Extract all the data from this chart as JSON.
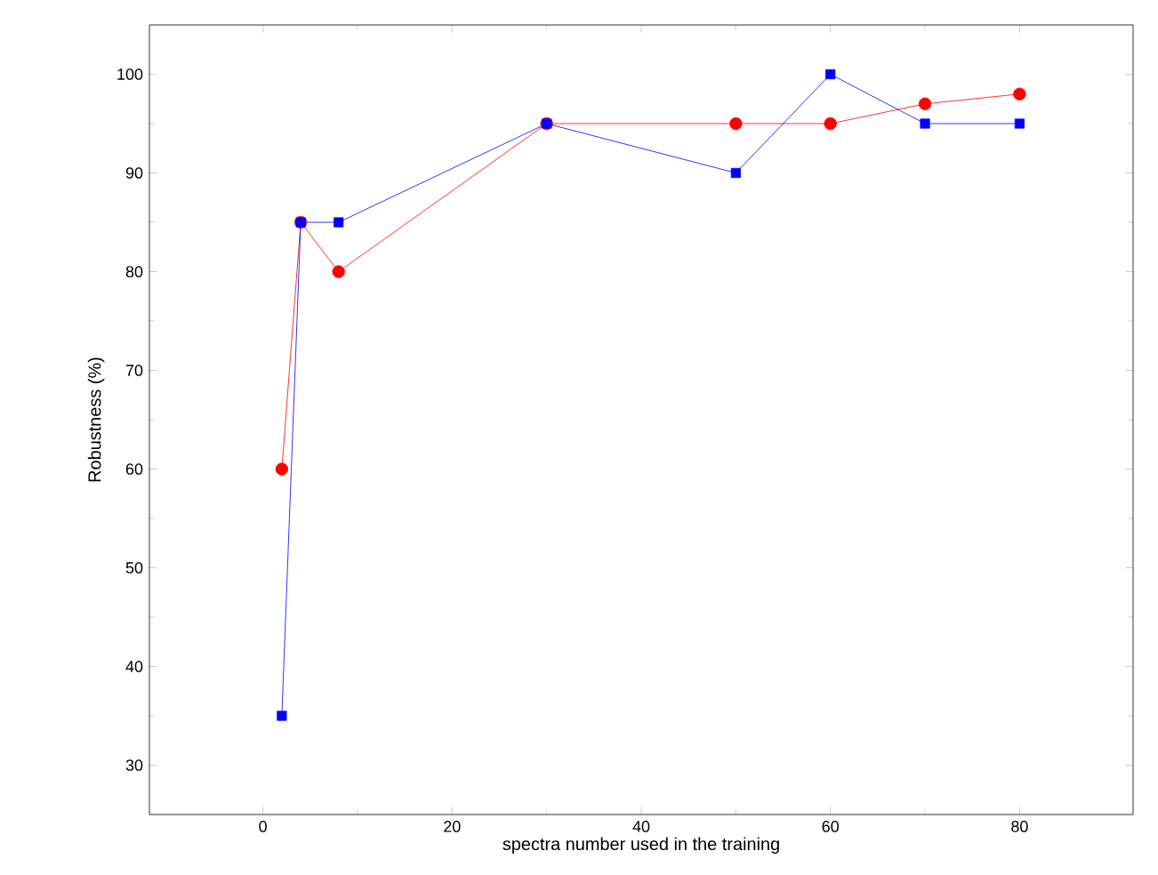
{
  "chart_data": {
    "type": "line",
    "xlabel": "spectra number used in the training",
    "ylabel": "Robustness (%)",
    "xlim": [
      -12,
      92
    ],
    "ylim": [
      25,
      105
    ],
    "xticks": [
      0,
      20,
      40,
      60,
      80
    ],
    "yticks": [
      30,
      40,
      50,
      60,
      70,
      80,
      90,
      100
    ],
    "grid": false,
    "series": [
      {
        "color": "#ff0000",
        "marker": "circle",
        "x": [
          2,
          4,
          8,
          30,
          50,
          60,
          70,
          80
        ],
        "values": [
          60,
          85,
          80,
          95,
          95,
          95,
          97,
          98
        ]
      },
      {
        "color": "#0000ff",
        "marker": "square",
        "x": [
          2,
          4,
          8,
          30,
          50,
          60,
          70,
          80
        ],
        "values": [
          35,
          85,
          85,
          95,
          90,
          100,
          95,
          95
        ]
      }
    ]
  }
}
